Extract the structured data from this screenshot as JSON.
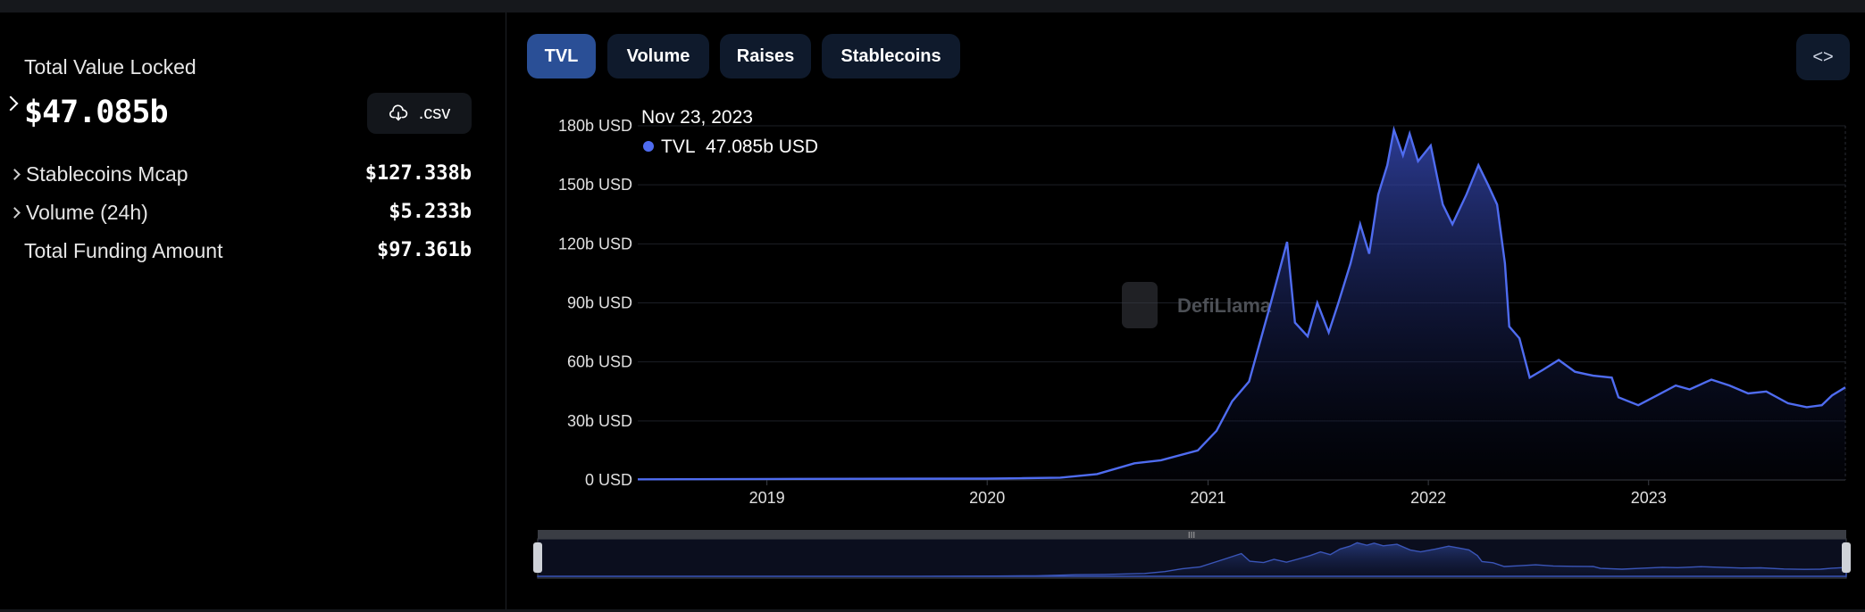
{
  "left_panel": {
    "tvl_label": "Total Value Locked",
    "tvl_value": "$47.085b",
    "csv_button": ".csv",
    "stats": [
      {
        "label": "Stablecoins Mcap",
        "value": "$127.338b",
        "expandable": true
      },
      {
        "label": "Volume (24h)",
        "value": "$5.233b",
        "expandable": true
      },
      {
        "label": "Total Funding Amount",
        "value": "$97.361b",
        "expandable": false
      }
    ]
  },
  "tabs": [
    {
      "label": "TVL",
      "active": true
    },
    {
      "label": "Volume",
      "active": false
    },
    {
      "label": "Raises",
      "active": false
    },
    {
      "label": "Stablecoins",
      "active": false
    }
  ],
  "embed_button": "<>",
  "tooltip": {
    "date": "Nov 23, 2023",
    "series": "TVL",
    "value": "47.085b USD"
  },
  "watermark": "DefiLlama",
  "colors": {
    "line": "#4f6cf0",
    "active_tab": "#2a4f96",
    "tab": "#0f1a2c"
  },
  "chart_data": {
    "type": "area",
    "series": [
      {
        "name": "TVL"
      }
    ],
    "x_ticks": [
      "2019",
      "2020",
      "2021",
      "2022",
      "2023"
    ],
    "y_ticks": [
      "0 USD",
      "30b USD",
      "60b USD",
      "90b USD",
      "120b USD",
      "150b USD",
      "180b USD"
    ],
    "ylim": [
      0,
      180
    ],
    "xlim": [
      "2018-06-01",
      "2023-11-23"
    ],
    "y_unit": "b USD",
    "points": [
      [
        "2018-06-01",
        0.3
      ],
      [
        "2019-01-01",
        0.5
      ],
      [
        "2019-06-01",
        0.6
      ],
      [
        "2019-12-31",
        0.7
      ],
      [
        "2020-03-01",
        0.9
      ],
      [
        "2020-05-01",
        1.2
      ],
      [
        "2020-07-01",
        3.0
      ],
      [
        "2020-09-01",
        8.5
      ],
      [
        "2020-10-15",
        10.0
      ],
      [
        "2020-12-15",
        15.0
      ],
      [
        "2021-01-15",
        25.0
      ],
      [
        "2021-02-10",
        40.0
      ],
      [
        "2021-03-10",
        50.0
      ],
      [
        "2021-04-15",
        90.0
      ],
      [
        "2021-05-12",
        121.0
      ],
      [
        "2021-05-25",
        80.0
      ],
      [
        "2021-06-15",
        73.0
      ],
      [
        "2021-07-01",
        90.0
      ],
      [
        "2021-07-20",
        75.0
      ],
      [
        "2021-08-05",
        90.0
      ],
      [
        "2021-08-25",
        110.0
      ],
      [
        "2021-09-10",
        130.0
      ],
      [
        "2021-09-25",
        115.0
      ],
      [
        "2021-10-10",
        145.0
      ],
      [
        "2021-10-25",
        160.0
      ],
      [
        "2021-11-05",
        178.0
      ],
      [
        "2021-11-20",
        165.0
      ],
      [
        "2021-12-01",
        176.0
      ],
      [
        "2021-12-15",
        162.0
      ],
      [
        "2022-01-05",
        170.0
      ],
      [
        "2022-01-25",
        140.0
      ],
      [
        "2022-02-10",
        130.0
      ],
      [
        "2022-03-05",
        145.0
      ],
      [
        "2022-03-25",
        160.0
      ],
      [
        "2022-04-10",
        150.0
      ],
      [
        "2022-04-25",
        140.0
      ],
      [
        "2022-05-08",
        110.0
      ],
      [
        "2022-05-15",
        78.0
      ],
      [
        "2022-06-01",
        72.0
      ],
      [
        "2022-06-18",
        52.0
      ],
      [
        "2022-07-10",
        56.0
      ],
      [
        "2022-08-05",
        61.0
      ],
      [
        "2022-09-01",
        55.0
      ],
      [
        "2022-10-01",
        53.0
      ],
      [
        "2022-11-01",
        52.0
      ],
      [
        "2022-11-12",
        42.0
      ],
      [
        "2022-12-15",
        38.0
      ],
      [
        "2023-01-15",
        43.0
      ],
      [
        "2023-02-15",
        48.0
      ],
      [
        "2023-03-10",
        46.0
      ],
      [
        "2023-04-15",
        51.0
      ],
      [
        "2023-05-15",
        48.0
      ],
      [
        "2023-06-15",
        44.0
      ],
      [
        "2023-07-15",
        45.0
      ],
      [
        "2023-08-20",
        39.0
      ],
      [
        "2023-09-20",
        37.0
      ],
      [
        "2023-10-15",
        38.0
      ],
      [
        "2023-11-01",
        43.0
      ],
      [
        "2023-11-23",
        47.085
      ]
    ]
  }
}
